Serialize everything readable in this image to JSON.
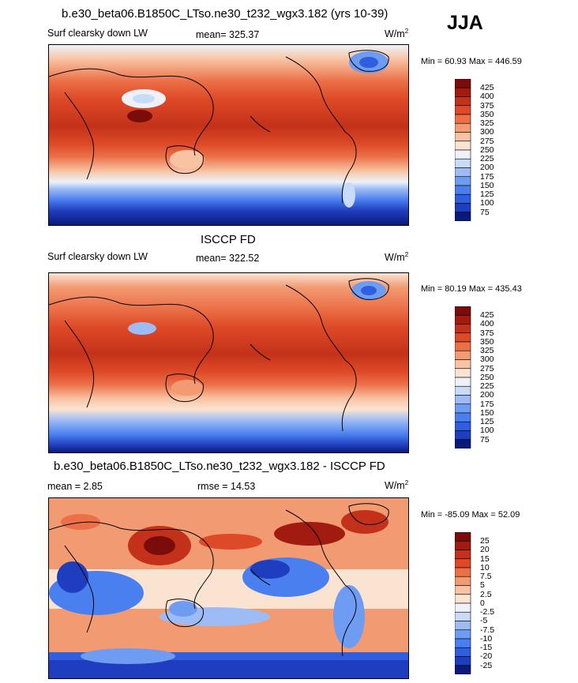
{
  "season": "JJA",
  "panels": [
    {
      "title": "b.e30_beta06.B1850C_LTso.ne30_t232_wgx3.182 (yrs 10-39)",
      "left_label": "Surf clearsky down LW",
      "center_label": "mean= 325.37",
      "units": "W/m",
      "units_sup": "2",
      "minmax": "Min =  60.93 Max = 446.59",
      "colorbar_labels": [
        "425",
        "400",
        "375",
        "350",
        "325",
        "300",
        "275",
        "250",
        "225",
        "200",
        "175",
        "150",
        "125",
        "100",
        "75"
      ]
    },
    {
      "title": "ISCCP FD",
      "left_label": "Surf clearsky down LW",
      "center_label": "mean= 322.52",
      "units": "W/m",
      "units_sup": "2",
      "minmax": "Min =  80.19 Max = 435.43",
      "colorbar_labels": [
        "425",
        "400",
        "375",
        "350",
        "325",
        "300",
        "275",
        "250",
        "225",
        "200",
        "175",
        "150",
        "125",
        "100",
        "75"
      ]
    },
    {
      "title": "b.e30_beta06.B1850C_LTso.ne30_t232_wgx3.182 - ISCCP FD",
      "left_label": "mean =   2.85",
      "center_label": "rmse =  14.53",
      "units": "W/m",
      "units_sup": "2",
      "minmax": "Min = -85.09 Max =  52.09",
      "colorbar_labels": [
        "25",
        "20",
        "15",
        "10",
        "7.5",
        "5",
        "2.5",
        "0",
        "-2.5",
        "-5",
        "-7.5",
        "-10",
        "-15",
        "-20",
        "-25"
      ]
    }
  ],
  "chart_data": [
    {
      "type": "heatmap",
      "title": "b.e30_beta06.B1850C_LTso.ne30_t232_wgx3.182 (yrs 10-39)",
      "variable": "Surf clearsky down LW",
      "season": "JJA",
      "mean": 325.37,
      "min": 60.93,
      "max": 446.59,
      "units": "W/m2",
      "contour_levels": [
        75,
        100,
        125,
        150,
        175,
        200,
        225,
        250,
        275,
        300,
        325,
        350,
        375,
        400,
        425
      ],
      "colors": [
        "#0a1a7a",
        "#1f3ebf",
        "#2f5fe0",
        "#4a7ff0",
        "#6f9cf3",
        "#9dbcf5",
        "#c8dbf8",
        "#eef2f8",
        "#fbe3d2",
        "#f8c3a3",
        "#f29a72",
        "#eb7048",
        "#de4a27",
        "#c4311a",
        "#a11b10",
        "#7a0d0a"
      ]
    },
    {
      "type": "heatmap",
      "title": "ISCCP FD",
      "variable": "Surf clearsky down LW",
      "season": "JJA",
      "mean": 322.52,
      "min": 80.19,
      "max": 435.43,
      "units": "W/m2",
      "contour_levels": [
        75,
        100,
        125,
        150,
        175,
        200,
        225,
        250,
        275,
        300,
        325,
        350,
        375,
        400,
        425
      ],
      "colors": [
        "#0a1a7a",
        "#1f3ebf",
        "#2f5fe0",
        "#4a7ff0",
        "#6f9cf3",
        "#9dbcf5",
        "#c8dbf8",
        "#eef2f8",
        "#fbe3d2",
        "#f8c3a3",
        "#f29a72",
        "#eb7048",
        "#de4a27",
        "#c4311a",
        "#a11b10",
        "#7a0d0a"
      ]
    },
    {
      "type": "heatmap",
      "title": "b.e30_beta06.B1850C_LTso.ne30_t232_wgx3.182 - ISCCP FD",
      "variable": "Surf clearsky down LW",
      "season": "JJA",
      "mean": 2.85,
      "rmse": 14.53,
      "min": -85.09,
      "max": 52.09,
      "units": "W/m2",
      "contour_levels": [
        -25,
        -20,
        -15,
        -10,
        -7.5,
        -5,
        -2.5,
        0,
        2.5,
        5,
        7.5,
        10,
        15,
        20,
        25
      ],
      "colors": [
        "#0a1a7a",
        "#1f3ebf",
        "#2f5fe0",
        "#4a7ff0",
        "#6f9cf3",
        "#9dbcf5",
        "#c8dbf8",
        "#eef2f8",
        "#fbe3d2",
        "#f8c3a3",
        "#f29a72",
        "#eb7048",
        "#de4a27",
        "#c4311a",
        "#a11b10",
        "#7a0d0a"
      ]
    }
  ]
}
